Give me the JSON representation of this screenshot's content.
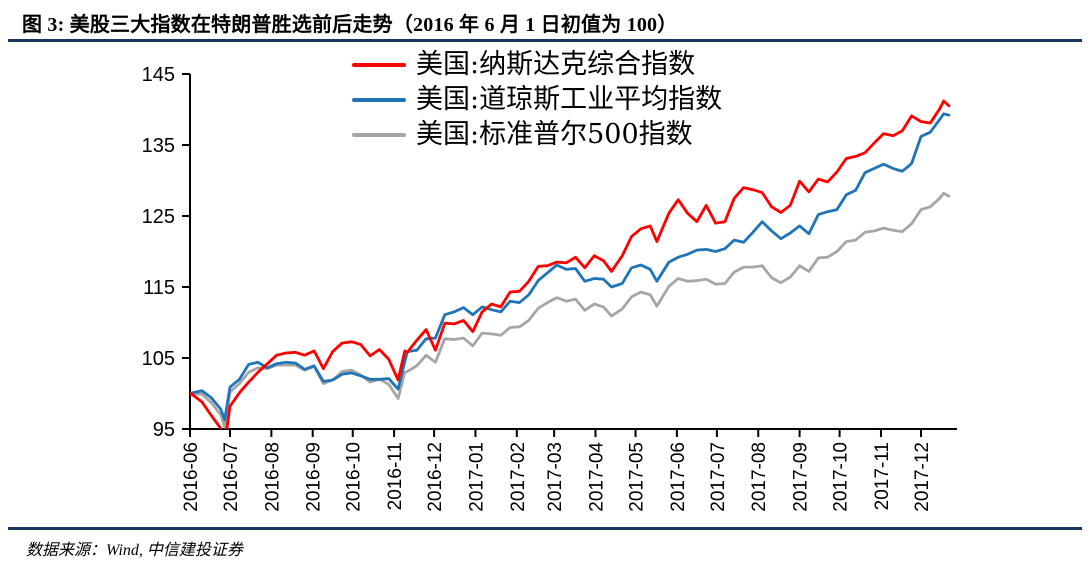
{
  "figure": {
    "title": "图 3: 美股三大指数在特朗普胜选前后走势（2016 年 6 月 1 日初值为 100）",
    "source_note": "数据来源：Wind, 中信建投证券",
    "accent_color": "#17365D"
  },
  "chart_data": {
    "type": "line",
    "title": "美股三大指数在特朗普胜选前后走势（2016年6月1日初值为100）",
    "base_note": "2016-06-01 = 100",
    "grid": false,
    "legend_position": "top-center",
    "ylim": [
      95,
      145
    ],
    "yticks": [
      95,
      105,
      115,
      125,
      135,
      145
    ],
    "xticks": [
      "2016-06",
      "2016-07",
      "2016-08",
      "2016-09",
      "2016-10",
      "2016-11",
      "2016-12",
      "2017-01",
      "2017-02",
      "2017-03",
      "2017-04",
      "2017-05",
      "2017-06",
      "2017-07",
      "2017-08",
      "2017-09",
      "2017-10",
      "2017-11",
      "2017-12"
    ],
    "x_range": [
      "2016-06-01",
      "2017-12-28"
    ],
    "dates": [
      "2016-06-01",
      "2016-06-03",
      "2016-06-10",
      "2016-06-17",
      "2016-06-24",
      "2016-06-27",
      "2016-07-01",
      "2016-07-08",
      "2016-07-15",
      "2016-07-22",
      "2016-07-29",
      "2016-08-05",
      "2016-08-12",
      "2016-08-19",
      "2016-08-26",
      "2016-09-02",
      "2016-09-09",
      "2016-09-16",
      "2016-09-23",
      "2016-09-30",
      "2016-10-07",
      "2016-10-14",
      "2016-10-21",
      "2016-10-28",
      "2016-11-04",
      "2016-11-09",
      "2016-11-11",
      "2016-11-18",
      "2016-11-25",
      "2016-12-02",
      "2016-12-09",
      "2016-12-16",
      "2016-12-23",
      "2016-12-30",
      "2017-01-06",
      "2017-01-13",
      "2017-01-20",
      "2017-01-27",
      "2017-02-03",
      "2017-02-10",
      "2017-02-17",
      "2017-02-24",
      "2017-03-03",
      "2017-03-10",
      "2017-03-17",
      "2017-03-24",
      "2017-03-31",
      "2017-04-07",
      "2017-04-13",
      "2017-04-21",
      "2017-04-28",
      "2017-05-05",
      "2017-05-12",
      "2017-05-17",
      "2017-05-26",
      "2017-06-02",
      "2017-06-09",
      "2017-06-16",
      "2017-06-23",
      "2017-06-30",
      "2017-07-07",
      "2017-07-14",
      "2017-07-21",
      "2017-07-28",
      "2017-08-04",
      "2017-08-11",
      "2017-08-18",
      "2017-08-25",
      "2017-09-01",
      "2017-09-08",
      "2017-09-15",
      "2017-09-22",
      "2017-09-29",
      "2017-10-06",
      "2017-10-13",
      "2017-10-20",
      "2017-10-27",
      "2017-11-03",
      "2017-11-10",
      "2017-11-17",
      "2017-11-24",
      "2017-12-01",
      "2017-12-08",
      "2017-12-15",
      "2017-12-18",
      "2017-12-22"
    ],
    "series": [
      {
        "key": "nasdaq",
        "name": "美国:纳斯达克综合指数",
        "color": "#FF0000",
        "values": [
          100.0,
          99.8,
          98.8,
          96.9,
          95.1,
          92.8,
          98.2,
          100.1,
          101.6,
          103.0,
          104.2,
          105.4,
          105.7,
          105.8,
          105.4,
          106.0,
          103.5,
          105.9,
          107.1,
          107.3,
          106.9,
          105.3,
          106.2,
          104.8,
          101.9,
          106.0,
          105.8,
          107.5,
          109.0,
          106.1,
          109.9,
          109.8,
          110.3,
          108.7,
          111.5,
          112.6,
          112.2,
          114.3,
          114.4,
          115.8,
          117.9,
          118.0,
          118.5,
          118.4,
          119.2,
          117.7,
          119.4,
          118.7,
          117.2,
          119.4,
          122.1,
          123.2,
          123.6,
          121.4,
          125.4,
          127.3,
          125.4,
          124.2,
          126.5,
          124.0,
          124.2,
          127.5,
          129.0,
          128.7,
          128.3,
          126.3,
          125.5,
          126.5,
          129.9,
          128.4,
          130.2,
          129.8,
          131.2,
          133.1,
          133.4,
          133.9,
          135.3,
          136.6,
          136.3,
          137.0,
          139.1,
          138.3,
          138.1,
          140.1,
          141.2,
          140.5
        ]
      },
      {
        "key": "dowjones",
        "name": "美国:道琼斯工业平均指数",
        "color": "#1F74B8",
        "values": [
          100.0,
          100.1,
          100.4,
          99.4,
          97.8,
          96.3,
          100.9,
          102.0,
          104.1,
          104.4,
          103.6,
          104.2,
          104.4,
          104.3,
          103.4,
          103.9,
          101.7,
          101.9,
          102.7,
          102.9,
          102.5,
          102.0,
          102.0,
          102.1,
          100.6,
          104.5,
          105.9,
          106.1,
          107.7,
          107.8,
          111.1,
          111.5,
          112.1,
          111.1,
          112.2,
          111.8,
          111.5,
          113.0,
          112.8,
          113.9,
          115.9,
          117.0,
          118.1,
          117.5,
          117.6,
          115.8,
          116.2,
          116.1,
          115.0,
          115.5,
          117.7,
          118.1,
          117.5,
          115.8,
          118.5,
          119.2,
          119.6,
          120.2,
          120.3,
          120.0,
          120.4,
          121.6,
          121.3,
          122.7,
          124.2,
          122.9,
          121.8,
          122.6,
          123.6,
          122.5,
          125.2,
          125.6,
          125.9,
          128.0,
          128.6,
          131.1,
          131.7,
          132.3,
          131.7,
          131.3,
          132.4,
          136.2,
          136.8,
          138.6,
          139.4,
          139.2
        ]
      },
      {
        "key": "sp500",
        "name": "美国:标准普尔500指数",
        "color": "#A6A6A6",
        "values": [
          100.0,
          100.0,
          99.9,
          98.7,
          97.0,
          95.3,
          100.2,
          101.4,
          103.0,
          103.6,
          103.5,
          104.0,
          104.0,
          104.0,
          103.3,
          103.8,
          101.4,
          101.9,
          103.1,
          103.3,
          102.6,
          101.6,
          102.0,
          101.3,
          99.3,
          103.0,
          103.1,
          103.9,
          105.4,
          104.4,
          107.7,
          107.6,
          107.8,
          106.7,
          108.5,
          108.4,
          108.2,
          109.3,
          109.4,
          110.3,
          112.0,
          112.8,
          113.5,
          113.0,
          113.3,
          111.7,
          112.6,
          112.2,
          110.9,
          111.9,
          113.6,
          114.3,
          113.9,
          112.3,
          115.1,
          116.2,
          115.8,
          115.9,
          116.1,
          115.4,
          115.5,
          117.1,
          117.8,
          117.8,
          118.0,
          116.3,
          115.6,
          116.4,
          118.0,
          117.2,
          119.1,
          119.2,
          120.0,
          121.4,
          121.6,
          122.7,
          122.9,
          123.3,
          123.0,
          122.8,
          123.9,
          125.9,
          126.3,
          127.5,
          128.2,
          127.8
        ]
      }
    ]
  }
}
